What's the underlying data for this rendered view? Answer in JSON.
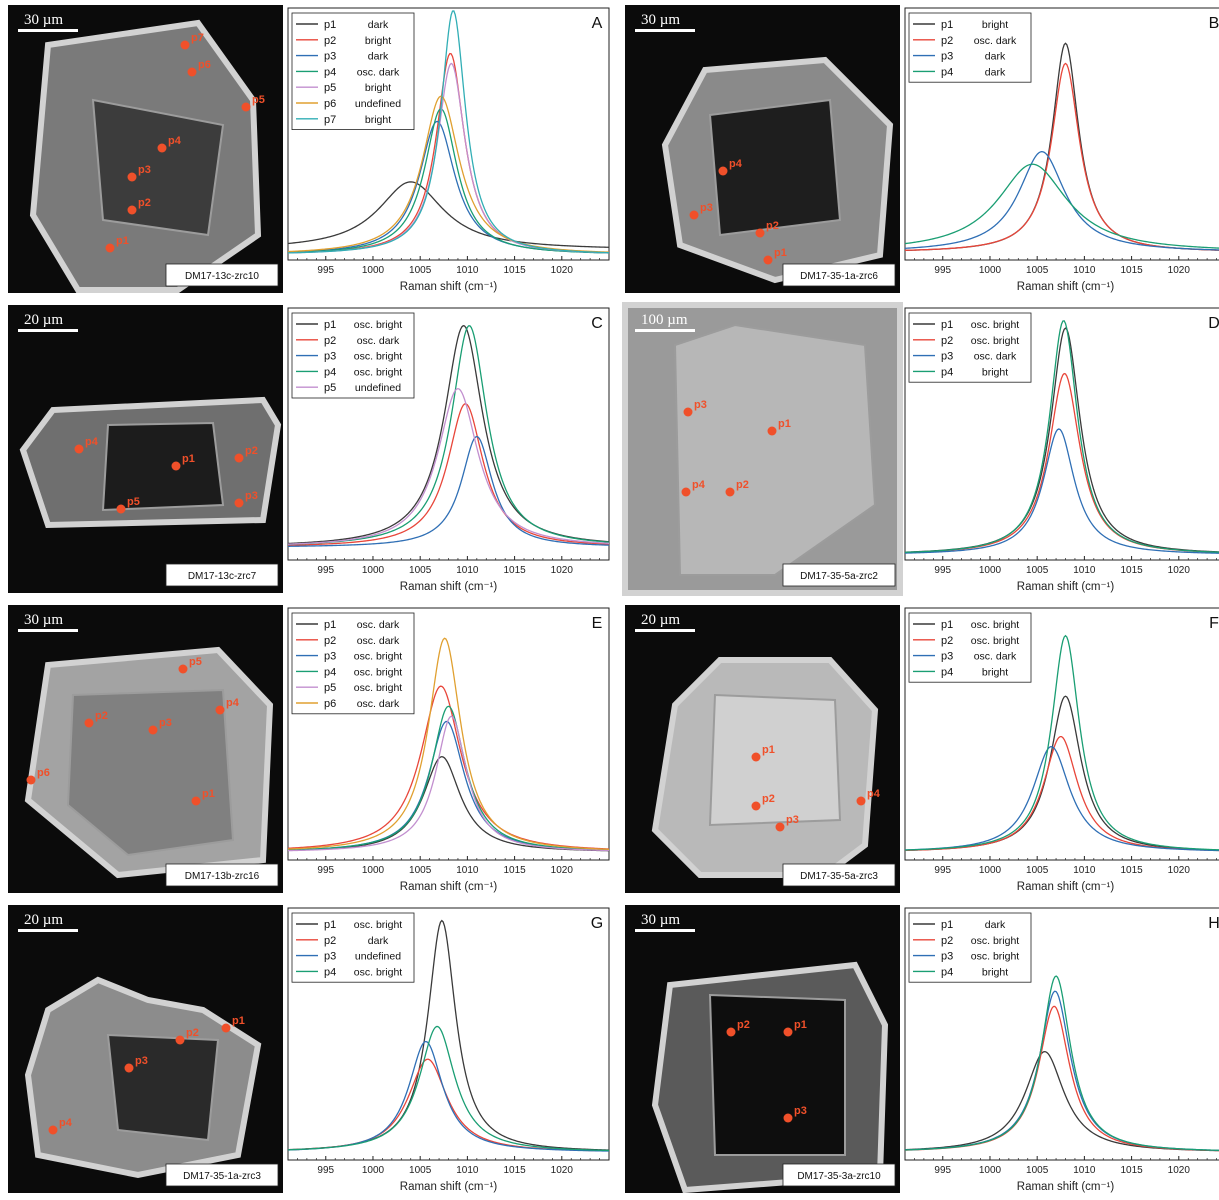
{
  "colors": {
    "p1": "#3a3a3a",
    "p2": "#e8463a",
    "p3": "#2f6fb5",
    "p4": "#1a9e73",
    "p5": "#c28fcf",
    "p6": "#e0a030",
    "p7": "#31aeb5",
    "marker": "#f0502a"
  },
  "panels": [
    {
      "id": "A",
      "sample": "DM17-13c-zrc10",
      "scale": "30 µm",
      "image_points": [
        "p1",
        "p2",
        "p3",
        "p4",
        "p5",
        "p6",
        "p7"
      ],
      "chart_data": {
        "type": "line",
        "letter": "A",
        "xlabel": "Raman shift (cm⁻¹)",
        "xlim": [
          991,
          1025
        ],
        "xticks": [
          995,
          1000,
          1005,
          1010,
          1015,
          1020
        ],
        "ylim": [
          0,
          1
        ],
        "series": [
          {
            "name": "p1",
            "label": "dark",
            "peak": 1004.0,
            "height": 0.27,
            "width": 4.2,
            "base": 0.04
          },
          {
            "name": "p2",
            "label": "bright",
            "peak": 1008.2,
            "height": 0.8,
            "width": 1.8,
            "base": 0.02
          },
          {
            "name": "p3",
            "label": "dark",
            "peak": 1006.8,
            "height": 0.53,
            "width": 2.3,
            "base": 0.02
          },
          {
            "name": "p4",
            "label": "osc. dark",
            "peak": 1007.2,
            "height": 0.58,
            "width": 2.1,
            "base": 0.02
          },
          {
            "name": "p5",
            "label": "bright",
            "peak": 1008.3,
            "height": 0.76,
            "width": 1.8,
            "base": 0.02
          },
          {
            "name": "p6",
            "label": "undefined",
            "peak": 1007.2,
            "height": 0.63,
            "width": 2.4,
            "base": 0.02
          },
          {
            "name": "p7",
            "label": "bright",
            "peak": 1008.5,
            "height": 0.97,
            "width": 1.6,
            "base": 0.02
          }
        ]
      }
    },
    {
      "id": "B",
      "sample": "DM17-35-1a-zrc6",
      "scale": "30 µm",
      "image_points": [
        "p1",
        "p2",
        "p3",
        "p4"
      ],
      "chart_data": {
        "type": "line",
        "letter": "B",
        "xlabel": "Raman shift (cm⁻¹)",
        "xlim": [
          991,
          1025
        ],
        "xticks": [
          995,
          1000,
          1005,
          1010,
          1015,
          1020
        ],
        "ylim": [
          0,
          1
        ],
        "series": [
          {
            "name": "p1",
            "label": "bright",
            "peak": 1008.0,
            "height": 0.83,
            "width": 1.7,
            "base": 0.03
          },
          {
            "name": "p2",
            "label": "osc. dark",
            "peak": 1008.0,
            "height": 0.75,
            "width": 1.8,
            "base": 0.03
          },
          {
            "name": "p3",
            "label": "dark",
            "peak": 1005.5,
            "height": 0.4,
            "width": 3.0,
            "base": 0.03
          },
          {
            "name": "p4",
            "label": "dark",
            "peak": 1004.5,
            "height": 0.35,
            "width": 4.5,
            "base": 0.03
          }
        ]
      }
    },
    {
      "id": "C",
      "sample": "DM17-13c-zrc7",
      "scale": "20 µm",
      "image_points": [
        "p1",
        "p2",
        "p3",
        "p4",
        "p5"
      ],
      "chart_data": {
        "type": "line",
        "letter": "C",
        "xlabel": "Raman shift (cm⁻¹)",
        "xlim": [
          991,
          1025
        ],
        "xticks": [
          995,
          1000,
          1005,
          1010,
          1015,
          1020
        ],
        "ylim": [
          0,
          1
        ],
        "series": [
          {
            "name": "p1",
            "label": "osc. bright",
            "peak": 1009.6,
            "height": 0.88,
            "width": 2.5,
            "base": 0.05
          },
          {
            "name": "p2",
            "label": "osc. dark",
            "peak": 1009.8,
            "height": 0.57,
            "width": 2.3,
            "base": 0.05
          },
          {
            "name": "p3",
            "label": "osc. bright",
            "peak": 1011.0,
            "height": 0.44,
            "width": 2.0,
            "base": 0.05
          },
          {
            "name": "p4",
            "label": "osc. bright",
            "peak": 1010.2,
            "height": 0.88,
            "width": 2.3,
            "base": 0.05
          },
          {
            "name": "p5",
            "label": "undefined",
            "peak": 1009.0,
            "height": 0.63,
            "width": 2.6,
            "base": 0.05
          }
        ]
      }
    },
    {
      "id": "D",
      "sample": "DM17-35-5a-zrc2",
      "scale": "100 µm",
      "image_points": [
        "p1",
        "p2",
        "p3",
        "p4"
      ],
      "chart_data": {
        "type": "line",
        "letter": "D",
        "xlabel": "Raman shift (cm⁻¹)",
        "xlim": [
          991,
          1025
        ],
        "xticks": [
          995,
          1000,
          1005,
          1010,
          1015,
          1020
        ],
        "ylim": [
          0,
          1
        ],
        "series": [
          {
            "name": "p1",
            "label": "osc. bright",
            "peak": 1008.0,
            "height": 0.9,
            "width": 1.9,
            "base": 0.02
          },
          {
            "name": "p2",
            "label": "osc. bright",
            "peak": 1007.9,
            "height": 0.72,
            "width": 2.0,
            "base": 0.02
          },
          {
            "name": "p3",
            "label": "osc. dark",
            "peak": 1007.3,
            "height": 0.5,
            "width": 2.0,
            "base": 0.02
          },
          {
            "name": "p4",
            "label": "bright",
            "peak": 1007.8,
            "height": 0.93,
            "width": 1.8,
            "base": 0.02
          }
        ]
      }
    },
    {
      "id": "E",
      "sample": "DM17-13b-zrc16",
      "scale": "30 µm",
      "image_points": [
        "p1",
        "p2",
        "p3",
        "p4",
        "p5",
        "p6"
      ],
      "chart_data": {
        "type": "line",
        "letter": "E",
        "xlabel": "Raman shift (cm⁻¹)",
        "xlim": [
          991,
          1025
        ],
        "xticks": [
          995,
          1000,
          1005,
          1010,
          1015,
          1020
        ],
        "ylim": [
          0,
          1
        ],
        "series": [
          {
            "name": "p1",
            "label": "osc. dark",
            "peak": 1007.3,
            "height": 0.38,
            "width": 2.4,
            "base": 0.03
          },
          {
            "name": "p2",
            "label": "osc. dark",
            "peak": 1007.2,
            "height": 0.66,
            "width": 2.6,
            "base": 0.03
          },
          {
            "name": "p3",
            "label": "osc. bright",
            "peak": 1007.8,
            "height": 0.52,
            "width": 2.3,
            "base": 0.03
          },
          {
            "name": "p4",
            "label": "osc. bright",
            "peak": 1008.0,
            "height": 0.58,
            "width": 2.2,
            "base": 0.03
          },
          {
            "name": "p5",
            "label": "osc. bright",
            "peak": 1008.3,
            "height": 0.54,
            "width": 2.0,
            "base": 0.03
          },
          {
            "name": "p6",
            "label": "osc. dark",
            "peak": 1007.6,
            "height": 0.85,
            "width": 2.1,
            "base": 0.03
          }
        ]
      }
    },
    {
      "id": "F",
      "sample": "DM17-35-5a-zrc3",
      "scale": "20 µm",
      "image_points": [
        "p1",
        "p2",
        "p3",
        "p4"
      ],
      "chart_data": {
        "type": "line",
        "letter": "F",
        "xlabel": "Raman shift (cm⁻¹)",
        "xlim": [
          991,
          1025
        ],
        "xticks": [
          995,
          1000,
          1005,
          1010,
          1015,
          1020
        ],
        "ylim": [
          0,
          1
        ],
        "series": [
          {
            "name": "p1",
            "label": "osc. bright",
            "peak": 1008.0,
            "height": 0.62,
            "width": 2.0,
            "base": 0.03
          },
          {
            "name": "p2",
            "label": "osc. bright",
            "peak": 1007.5,
            "height": 0.46,
            "width": 2.2,
            "base": 0.03
          },
          {
            "name": "p3",
            "label": "osc. dark",
            "peak": 1006.5,
            "height": 0.42,
            "width": 2.4,
            "base": 0.03
          },
          {
            "name": "p4",
            "label": "bright",
            "peak": 1008.0,
            "height": 0.86,
            "width": 1.8,
            "base": 0.03
          }
        ]
      }
    },
    {
      "id": "G",
      "sample": "DM17-35-1a-zrc3",
      "scale": "20 µm",
      "image_points": [
        "p1",
        "p2",
        "p3",
        "p4"
      ],
      "chart_data": {
        "type": "line",
        "letter": "G",
        "xlabel": "Raman shift (cm⁻¹)",
        "xlim": [
          991,
          1025
        ],
        "xticks": [
          995,
          1000,
          1005,
          1010,
          1015,
          1020
        ],
        "ylim": [
          0,
          1
        ],
        "series": [
          {
            "name": "p1",
            "label": "osc. bright",
            "peak": 1007.3,
            "height": 0.92,
            "width": 1.8,
            "base": 0.03
          },
          {
            "name": "p2",
            "label": "dark",
            "peak": 1005.8,
            "height": 0.37,
            "width": 2.5,
            "base": 0.03
          },
          {
            "name": "p3",
            "label": "undefined",
            "peak": 1005.6,
            "height": 0.44,
            "width": 2.2,
            "base": 0.03
          },
          {
            "name": "p4",
            "label": "osc. bright",
            "peak": 1006.8,
            "height": 0.5,
            "width": 2.3,
            "base": 0.03
          }
        ]
      }
    },
    {
      "id": "H",
      "sample": "DM17-35-3a-zrc10",
      "scale": "30 µm",
      "image_points": [
        "p1",
        "p2",
        "p3",
        "p4"
      ],
      "chart_data": {
        "type": "line",
        "letter": "H",
        "xlabel": "Raman shift (cm⁻¹)",
        "xlim": [
          991,
          1025
        ],
        "xticks": [
          995,
          1000,
          1005,
          1010,
          1015,
          1020
        ],
        "ylim": [
          0,
          1
        ],
        "series": [
          {
            "name": "p1",
            "label": "dark",
            "peak": 1005.8,
            "height": 0.4,
            "width": 2.5,
            "base": 0.03
          },
          {
            "name": "p2",
            "label": "osc. bright",
            "peak": 1006.8,
            "height": 0.58,
            "width": 2.0,
            "base": 0.03
          },
          {
            "name": "p3",
            "label": "osc. bright",
            "peak": 1006.9,
            "height": 0.64,
            "width": 2.0,
            "base": 0.03
          },
          {
            "name": "p4",
            "label": "bright",
            "peak": 1007.0,
            "height": 0.7,
            "width": 1.9,
            "base": 0.03
          }
        ]
      }
    }
  ]
}
